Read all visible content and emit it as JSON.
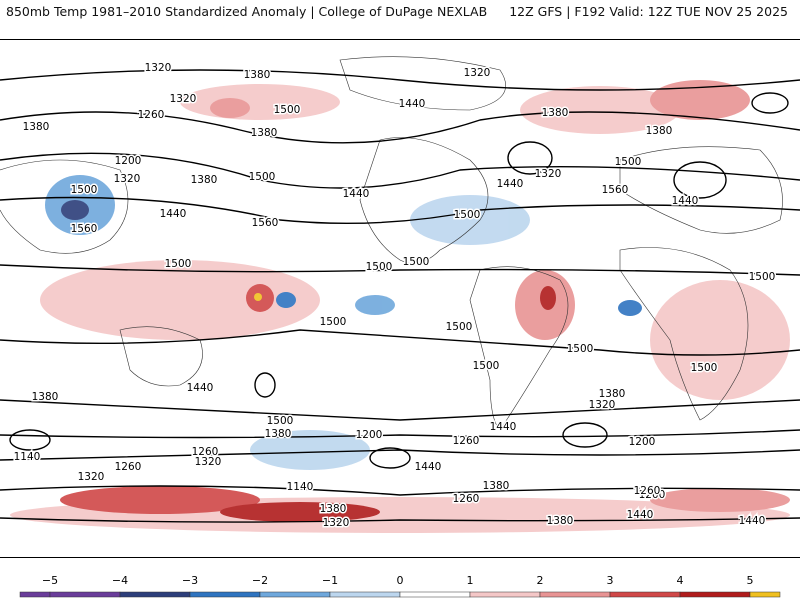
{
  "header": {
    "title_left": "850mb Temp 1981–2010 Standardized Anomaly | College of DuPage NEXLAB",
    "title_right": "12Z GFS | F192 Valid: 12Z TUE NOV 25 2025"
  },
  "map": {
    "projection": "global cylindrical",
    "contour_labels": [
      {
        "text": "1320"
      },
      {
        "text": "1380"
      },
      {
        "text": "1320"
      },
      {
        "text": "1320"
      },
      {
        "text": "1500"
      },
      {
        "text": "1440"
      },
      {
        "text": "1380"
      },
      {
        "text": "1260"
      },
      {
        "text": "1380"
      },
      {
        "text": "1380"
      },
      {
        "text": "1380"
      },
      {
        "text": "1200"
      },
      {
        "text": "1320"
      },
      {
        "text": "1380"
      },
      {
        "text": "1500"
      },
      {
        "text": "1500"
      },
      {
        "text": "1440"
      },
      {
        "text": "1320"
      },
      {
        "text": "1440"
      },
      {
        "text": "1500"
      },
      {
        "text": "1560"
      },
      {
        "text": "1440"
      },
      {
        "text": "1560"
      },
      {
        "text": "1500"
      },
      {
        "text": "1440"
      },
      {
        "text": "1560"
      },
      {
        "text": "1500"
      },
      {
        "text": "1500"
      },
      {
        "text": "1500"
      },
      {
        "text": "1500"
      },
      {
        "text": "1500"
      },
      {
        "text": "1500"
      },
      {
        "text": "1500"
      },
      {
        "text": "1500"
      },
      {
        "text": "1500"
      },
      {
        "text": "1440"
      },
      {
        "text": "1380"
      },
      {
        "text": "1500"
      },
      {
        "text": "1380"
      },
      {
        "text": "1320"
      },
      {
        "text": "1380"
      },
      {
        "text": "1260"
      },
      {
        "text": "1440"
      },
      {
        "text": "1140"
      },
      {
        "text": "1200"
      },
      {
        "text": "1260"
      },
      {
        "text": "1320"
      },
      {
        "text": "1200"
      },
      {
        "text": "1260"
      },
      {
        "text": "1440"
      },
      {
        "text": "1380"
      },
      {
        "text": "1140"
      },
      {
        "text": "1200"
      },
      {
        "text": "1320"
      },
      {
        "text": "1260"
      },
      {
        "text": "1380"
      },
      {
        "text": "1440"
      },
      {
        "text": "1320"
      },
      {
        "text": "1260"
      },
      {
        "text": "1380"
      },
      {
        "text": "1440"
      }
    ]
  },
  "colorbar": {
    "ticks": [
      "−5",
      "−4",
      "−3",
      "−2",
      "−1",
      "0",
      "1",
      "2",
      "3",
      "4",
      "5"
    ],
    "colors": {
      "m5": "#6a3d9a",
      "m4": "#2c3e7a",
      "m3": "#2f74c0",
      "m2": "#6fa8dc",
      "m1": "#bcd6ee",
      "zero": "#ffffff",
      "p1": "#f4c7c7",
      "p2": "#e89494",
      "p3": "#d04848",
      "p4": "#b01c1c",
      "p5": "#7a0a0a",
      "extreme": "#f0c020"
    }
  }
}
